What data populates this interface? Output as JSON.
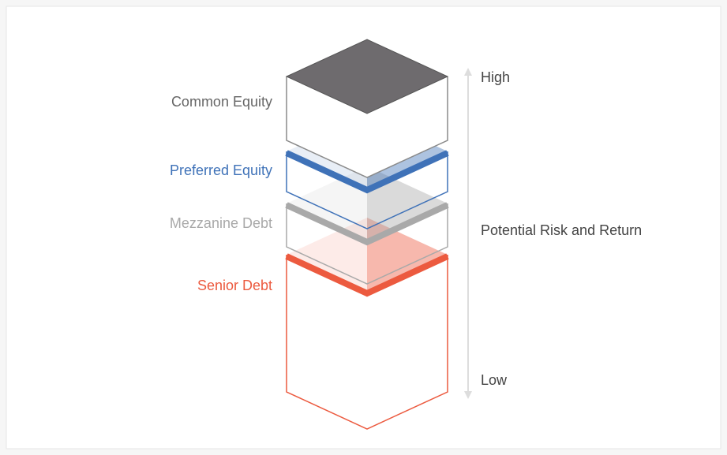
{
  "layers": [
    {
      "label": "Common Equity",
      "color": "#6e6b6e"
    },
    {
      "label": "Preferred Equity",
      "color": "#3f72b8"
    },
    {
      "label": "Mezzanine Debt",
      "color": "#a9a9a9"
    },
    {
      "label": "Senior Debt",
      "color": "#ec5a3f"
    }
  ],
  "axis": {
    "top": "High",
    "middle": "Potential Risk and Return",
    "bottom": "Low"
  }
}
